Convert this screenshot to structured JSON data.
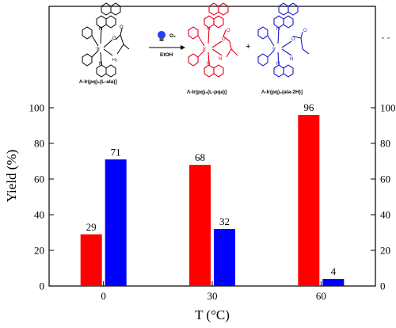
{
  "chart_data": {
    "type": "bar",
    "categories": [
      "0",
      "30",
      "60"
    ],
    "series": [
      {
        "values": [
          29,
          68,
          96
        ],
        "color": "#ff0000"
      },
      {
        "values": [
          71,
          32,
          4
        ],
        "color": "#0000ff"
      }
    ],
    "xlabel": "T (°C)",
    "ylabel": "Yield (%)",
    "ylim": [
      0,
      100
    ],
    "yticks": [
      "0",
      "20",
      "40",
      "60",
      "80",
      "100"
    ],
    "grid": false,
    "right_axis_mirrored": true
  },
  "scheme": {
    "reactant_label": "Λ-Ir(pq)₂(L-ala)]",
    "reagent_top": "O₂",
    "reagent_bottom": "EtOH",
    "product1_label": "Λ-Ir(pq)₂(L-pqa)]",
    "product2_label": "Λ-Ir(pq)₂(ala-2H)]",
    "plus": "+",
    "atom_ir": "Ir",
    "atom_n": "N",
    "atom_o": "O",
    "atom_h2n": "H₂",
    "atom_nh": "N",
    "colors": {
      "reactant": "#000000",
      "product1": "#e8001c",
      "product2": "#1a1acc"
    }
  }
}
